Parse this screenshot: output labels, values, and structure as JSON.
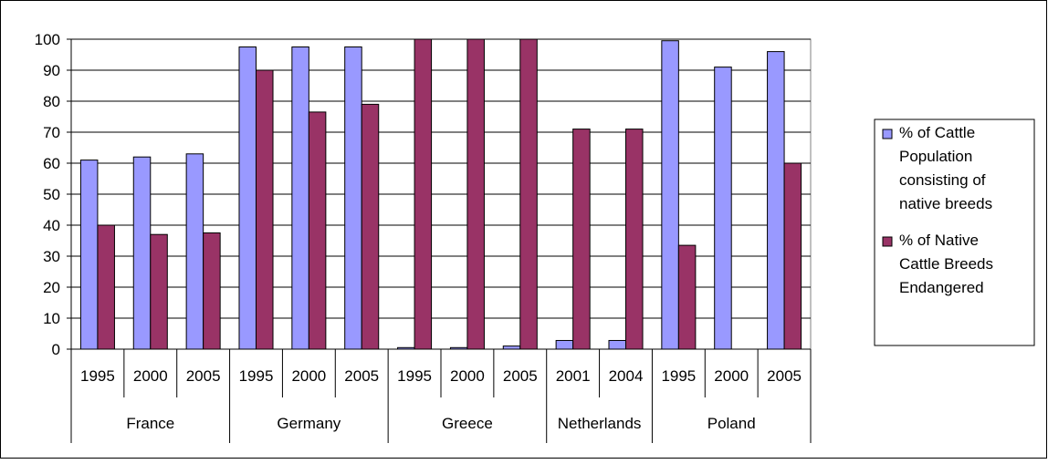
{
  "chart_data": {
    "type": "bar",
    "groups": [
      {
        "label": "France",
        "years": [
          "1995",
          "2000",
          "2005"
        ]
      },
      {
        "label": "Germany",
        "years": [
          "1995",
          "2000",
          "2005"
        ]
      },
      {
        "label": "Greece",
        "years": [
          "1995",
          "2000",
          "2005"
        ]
      },
      {
        "label": "Netherlands",
        "years": [
          "2001",
          "2004"
        ]
      },
      {
        "label": "Poland",
        "years": [
          "1995",
          "2000",
          "2005"
        ]
      }
    ],
    "series": [
      {
        "name": "% of Cattle Population consisting of native breeds",
        "legend_lines": [
          "% of Cattle",
          "Population",
          "consisting of",
          "native breeds"
        ],
        "color": "#9999ff",
        "values": [
          61,
          62,
          63,
          97.5,
          97.5,
          97.5,
          0.5,
          0.5,
          1,
          2.8,
          2.8,
          99.5,
          91,
          96
        ]
      },
      {
        "name": "% of Native Cattle Breeds Endangered",
        "legend_lines": [
          "% of Native",
          "Cattle Breeds",
          "Endangered"
        ],
        "color": "#993366",
        "values": [
          40,
          37,
          37.5,
          90,
          76.5,
          79,
          100,
          100,
          100,
          71,
          71,
          33.5,
          0,
          60
        ]
      }
    ],
    "ylim": [
      0,
      100
    ],
    "yticks": [
      "0",
      "10",
      "20",
      "30",
      "40",
      "50",
      "60",
      "70",
      "80",
      "90",
      "100"
    ],
    "grid": true,
    "legend": "right"
  }
}
